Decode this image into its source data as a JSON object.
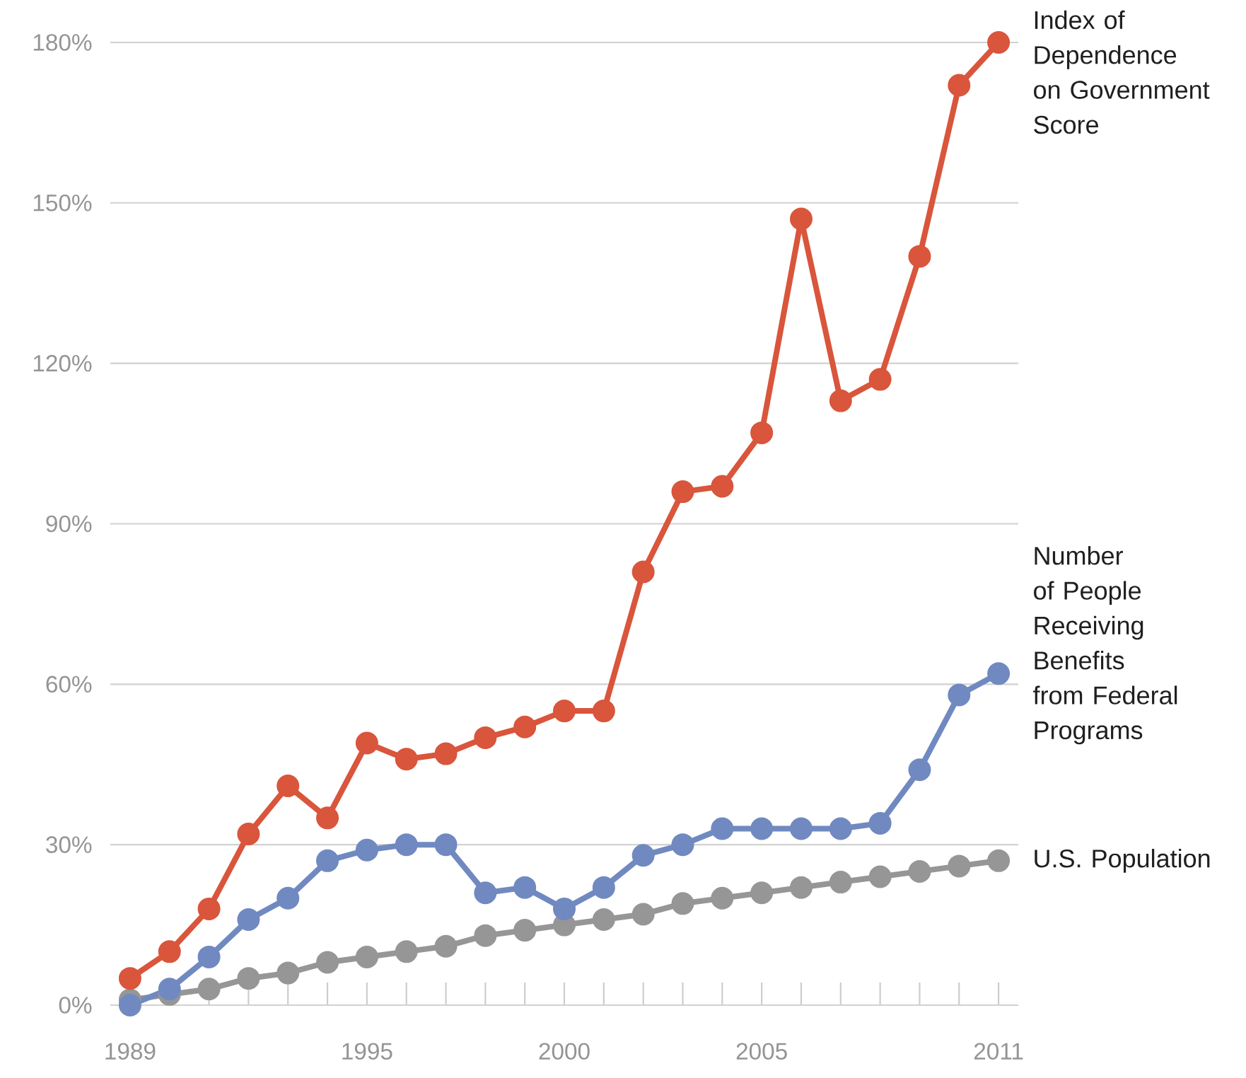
{
  "chart_data": {
    "type": "line",
    "x": [
      1989,
      1990,
      1991,
      1992,
      1993,
      1994,
      1995,
      1996,
      1997,
      1998,
      1999,
      2000,
      2001,
      2002,
      2003,
      2004,
      2005,
      2006,
      2007,
      2008,
      2009,
      2010,
      2011
    ],
    "series": [
      {
        "name": "Index of Dependence on Government Score",
        "color": "#d9553b",
        "values": [
          5,
          10,
          18,
          32,
          41,
          35,
          49,
          46,
          47,
          50,
          52,
          55,
          55,
          81,
          96,
          97,
          107,
          147,
          113,
          117,
          140,
          172,
          180
        ]
      },
      {
        "name": "Number of People Receiving Benefits from Federal Programs",
        "color": "#7089c0",
        "values": [
          0,
          3,
          9,
          16,
          20,
          27,
          29,
          30,
          30,
          21,
          22,
          18,
          22,
          28,
          30,
          33,
          33,
          33,
          33,
          34,
          44,
          58,
          62
        ]
      },
      {
        "name": "U.S. Population",
        "color": "#969696",
        "values": [
          1,
          2,
          3,
          5,
          6,
          8,
          9,
          10,
          11,
          13,
          14,
          15,
          16,
          17,
          19,
          20,
          21,
          22,
          23,
          24,
          25,
          26,
          27
        ]
      }
    ],
    "xlim": [
      1988.5,
      2011.5
    ],
    "ylim": [
      0,
      180
    ],
    "xticks": [
      1989,
      {
        "value": 1990,
        "label": null
      },
      {
        "value": 1991,
        "label": null
      },
      {
        "value": 1992,
        "label": null
      },
      {
        "value": 1993,
        "label": null
      },
      {
        "value": 1994,
        "label": null
      },
      1995,
      {
        "value": 1996,
        "label": null
      },
      {
        "value": 1997,
        "label": null
      },
      {
        "value": 1998,
        "label": null
      },
      {
        "value": 1999,
        "label": null
      },
      2000,
      {
        "value": 2001,
        "label": null
      },
      {
        "value": 2002,
        "label": null
      },
      {
        "value": 2003,
        "label": null
      },
      {
        "value": 2004,
        "label": null
      },
      2005,
      {
        "value": 2006,
        "label": null
      },
      {
        "value": 2007,
        "label": null
      },
      {
        "value": 2008,
        "label": null
      },
      {
        "value": 2009,
        "label": null
      },
      {
        "value": 2010,
        "label": null
      },
      2011
    ],
    "yticks": [
      {
        "value": 0,
        "label": "0%"
      },
      {
        "value": 30,
        "label": "30%"
      },
      {
        "value": 60,
        "label": "60%"
      },
      {
        "value": 90,
        "label": "90%"
      },
      {
        "value": 120,
        "label": "120%"
      },
      {
        "value": 150,
        "label": "150%"
      },
      {
        "value": 180,
        "label": "180%"
      }
    ],
    "grid": "y",
    "marker": "circle",
    "line_style": "solid"
  }
}
